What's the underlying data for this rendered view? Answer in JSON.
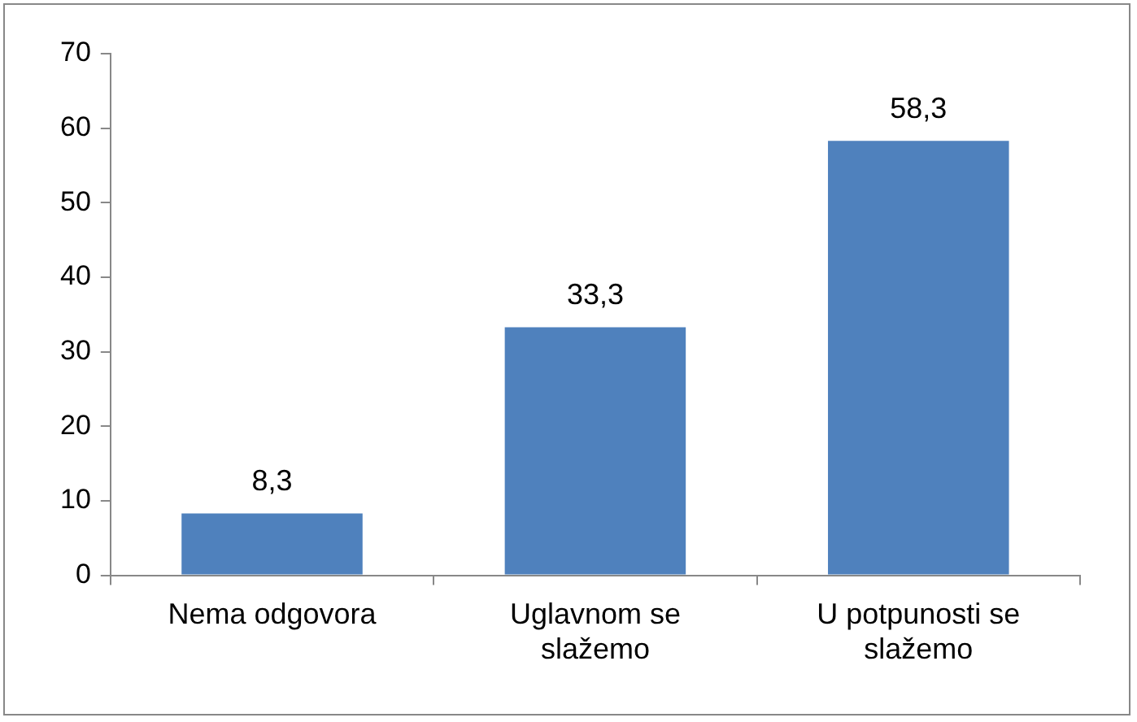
{
  "chart_data": {
    "type": "bar",
    "categories": [
      "Nema odgovora",
      "Uglavnom se slažemo",
      "U potpunosti se slažemo"
    ],
    "values": [
      8.3,
      33.3,
      58.3
    ],
    "value_labels": [
      "8,3",
      "33,3",
      "58,3"
    ],
    "color": "#4f81bd",
    "ylim": [
      0,
      70
    ],
    "yticks": [
      0,
      10,
      20,
      30,
      40,
      50,
      60,
      70
    ],
    "grid": false,
    "legend": false
  }
}
